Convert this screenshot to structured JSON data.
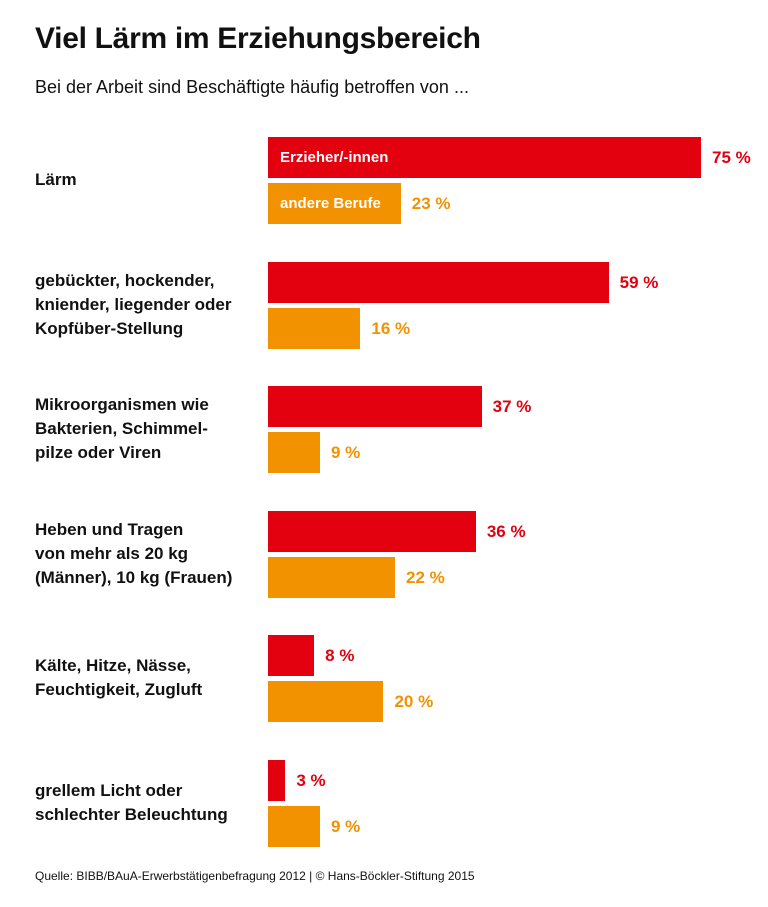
{
  "chart_data": {
    "type": "bar",
    "orientation": "horizontal",
    "title": "Viel Lärm im Erziehungsbereich",
    "subtitle": "Bei der Arbeit sind Beschäftigte häufig betroffen von ...",
    "source": "Quelle: BIBB/BAuA-Erwerbstätigenbefragung 2012 | © Hans-Böckler-Stiftung 2015",
    "categories": [
      "Lärm",
      "gebückter, hockender, kniender, liegender oder Kopfüber-Stellung",
      "Mikroorganismen wie Bakterien, Schimmel-pilze oder Viren",
      "Heben und Tragen von mehr als 20 kg (Männer), 10 kg (Frauen)",
      "Kälte, Hitze, Nässe, Feuchtigkeit, Zugluft",
      "grellem Licht oder schlechter Beleuchtung"
    ],
    "category_lines": [
      [
        "Lärm"
      ],
      [
        "gebückter, hockender,",
        "kniender, liegender oder",
        "Kopfüber-Stellung"
      ],
      [
        "Mikroorganismen wie",
        "Bakterien, Schimmel-",
        "pilze oder Viren"
      ],
      [
        "Heben und Tragen",
        "von mehr als 20 kg",
        "(Männer), 10 kg (Frauen)"
      ],
      [
        "Kälte, Hitze, Nässe,",
        "Feuchtigkeit, Zugluft"
      ],
      [
        "grellem Licht oder",
        "schlechter Beleuchtung"
      ]
    ],
    "series": [
      {
        "name": "Erzieher/-innen",
        "color": "#E3000F",
        "values": [
          75,
          59,
          37,
          36,
          8,
          3
        ]
      },
      {
        "name": "andere Berufe",
        "color": "#F39200",
        "values": [
          23,
          16,
          9,
          22,
          20,
          9
        ]
      }
    ],
    "value_suffix": " %",
    "xlim": [
      0,
      100
    ],
    "grid": false,
    "legend": "inside first bars"
  }
}
